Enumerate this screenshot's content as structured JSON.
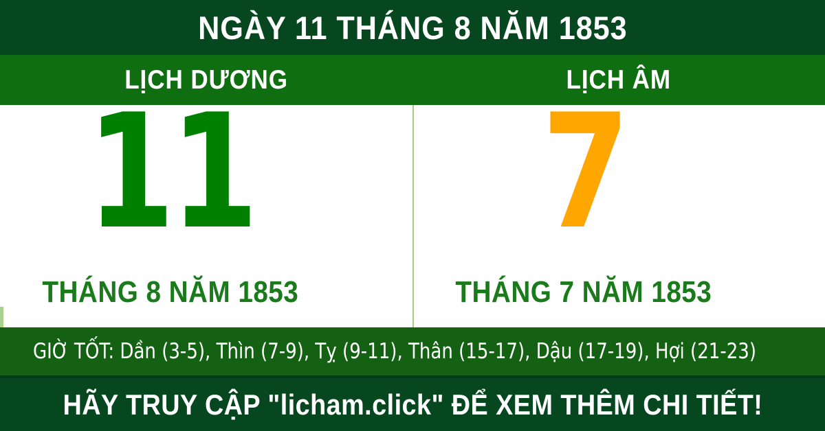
{
  "header": {
    "title": "NGÀY 11 THÁNG 8 NĂM 1853"
  },
  "columns": {
    "solar": {
      "header": "LỊCH DƯƠNG",
      "day": "11",
      "month_line": "THÁNG 8 NĂM 1853"
    },
    "lunar": {
      "header": "LỊCH ÂM",
      "day": "7",
      "month_line": "THÁNG 7 NĂM 1853"
    }
  },
  "good_hours": {
    "text": "GIỜ TỐT: Dần (3-5), Thìn (7-9), Tỵ (9-11), Thân (15-17), Dậu (17-19), Hợi (21-23)"
  },
  "footer": {
    "cta": "HÃY TRUY CẬP \"licham.click\" ĐỂ XEM THÊM CHI TIẾT!"
  },
  "colors": {
    "dark_band": "#07471f",
    "green_band": "#0f6e10",
    "hours_band": "#146114",
    "solar_day": "#008000",
    "lunar_day": "#ffa600",
    "month_text": "#1b7a1b",
    "divider": "#a5cf7a",
    "band_sep": "#053d1b",
    "white": "#ffffff"
  }
}
